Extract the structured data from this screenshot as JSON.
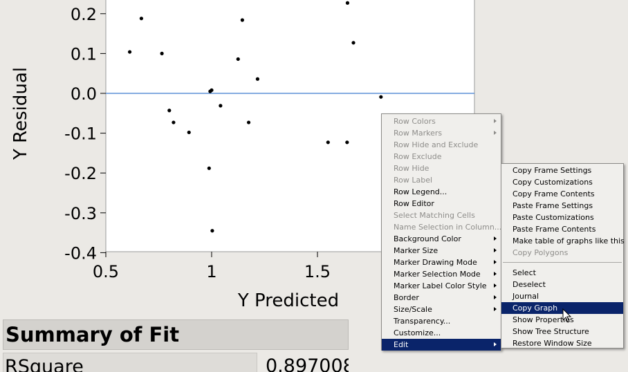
{
  "chart_data": {
    "type": "scatter",
    "xlabel": "Y Predicted",
    "ylabel": "Y Residual",
    "x_ticks": [
      "0.5",
      "1",
      "1.5"
    ],
    "y_ticks": [
      "0.2",
      "0.1",
      "0.0",
      "-0.1",
      "-0.2",
      "-0.3",
      "-0.4"
    ],
    "y_tick_values": [
      0.2,
      0.1,
      0.0,
      -0.1,
      -0.2,
      -0.3,
      -0.4
    ],
    "x_tick_values": [
      0.5,
      1.0,
      1.5
    ],
    "reference_line": 0.0,
    "reference_line_color": "#5b8fd6",
    "points": [
      {
        "x": 0.613,
        "y": 0.104
      },
      {
        "x": 0.668,
        "y": 0.188
      },
      {
        "x": 0.765,
        "y": 0.1
      },
      {
        "x": 0.8,
        "y": -0.043
      },
      {
        "x": 0.82,
        "y": -0.073
      },
      {
        "x": 0.893,
        "y": -0.098
      },
      {
        "x": 0.988,
        "y": -0.188
      },
      {
        "x": 0.993,
        "y": 0.005
      },
      {
        "x": 1.0,
        "y": 0.008
      },
      {
        "x": 1.003,
        "y": -0.345
      },
      {
        "x": 1.042,
        "y": -0.031
      },
      {
        "x": 1.125,
        "y": 0.086
      },
      {
        "x": 1.145,
        "y": 0.184
      },
      {
        "x": 1.175,
        "y": -0.073
      },
      {
        "x": 1.217,
        "y": 0.036
      },
      {
        "x": 1.55,
        "y": -0.123
      },
      {
        "x": 1.64,
        "y": -0.123
      },
      {
        "x": 1.642,
        "y": 0.227
      },
      {
        "x": 1.67,
        "y": 0.127
      },
      {
        "x": 1.8,
        "y": -0.009
      }
    ]
  },
  "summary": {
    "title": "Summary of Fit",
    "row_label": "RSquare",
    "row_value": "0.897008"
  },
  "context_menu": {
    "items": [
      {
        "label": "Row Colors",
        "disabled": true,
        "submenu": true
      },
      {
        "label": "Row Markers",
        "disabled": true,
        "submenu": true
      },
      {
        "label": "Row Hide and Exclude",
        "disabled": true,
        "submenu": false
      },
      {
        "label": "Row Exclude",
        "disabled": true,
        "submenu": false
      },
      {
        "label": "Row Hide",
        "disabled": true,
        "submenu": false
      },
      {
        "label": "Row Label",
        "disabled": true,
        "submenu": false
      },
      {
        "label": "Row Legend...",
        "disabled": false,
        "submenu": false
      },
      {
        "label": "Row Editor",
        "disabled": false,
        "submenu": false
      },
      {
        "label": "Select Matching Cells",
        "disabled": true,
        "submenu": false
      },
      {
        "label": "Name Selection in Column...",
        "disabled": true,
        "submenu": false
      },
      {
        "label": "Background Color",
        "disabled": false,
        "submenu": true
      },
      {
        "label": "Marker Size",
        "disabled": false,
        "submenu": true
      },
      {
        "label": "Marker Drawing Mode",
        "disabled": false,
        "submenu": true
      },
      {
        "label": "Marker Selection Mode",
        "disabled": false,
        "submenu": true
      },
      {
        "label": "Marker Label Color Style",
        "disabled": false,
        "submenu": true
      },
      {
        "label": "Border",
        "disabled": false,
        "submenu": true
      },
      {
        "label": "Size/Scale",
        "disabled": false,
        "submenu": true
      },
      {
        "label": "Transparency...",
        "disabled": false,
        "submenu": false
      },
      {
        "label": "Customize...",
        "disabled": false,
        "submenu": false
      },
      {
        "label": "Edit",
        "disabled": false,
        "submenu": true,
        "active": true
      }
    ]
  },
  "edit_submenu": {
    "groups": [
      [
        {
          "label": "Copy Frame Settings",
          "disabled": false
        },
        {
          "label": "Copy Customizations",
          "disabled": false
        },
        {
          "label": "Copy Frame Contents",
          "disabled": false
        },
        {
          "label": "Paste Frame Settings",
          "disabled": false
        },
        {
          "label": "Paste Customizations",
          "disabled": false
        },
        {
          "label": "Paste Frame Contents",
          "disabled": false
        },
        {
          "label": "Make table of graphs like this",
          "disabled": false
        },
        {
          "label": "Copy Polygons",
          "disabled": true
        }
      ],
      [
        {
          "label": "Select",
          "disabled": false
        },
        {
          "label": "Deselect",
          "disabled": false
        },
        {
          "label": "Journal",
          "disabled": false
        },
        {
          "label": "Copy Graph",
          "disabled": false,
          "active": true
        },
        {
          "label": "Show Properties",
          "disabled": false
        },
        {
          "label": "Show Tree Structure",
          "disabled": false
        },
        {
          "label": "Restore Window Size",
          "disabled": false
        }
      ]
    ]
  }
}
